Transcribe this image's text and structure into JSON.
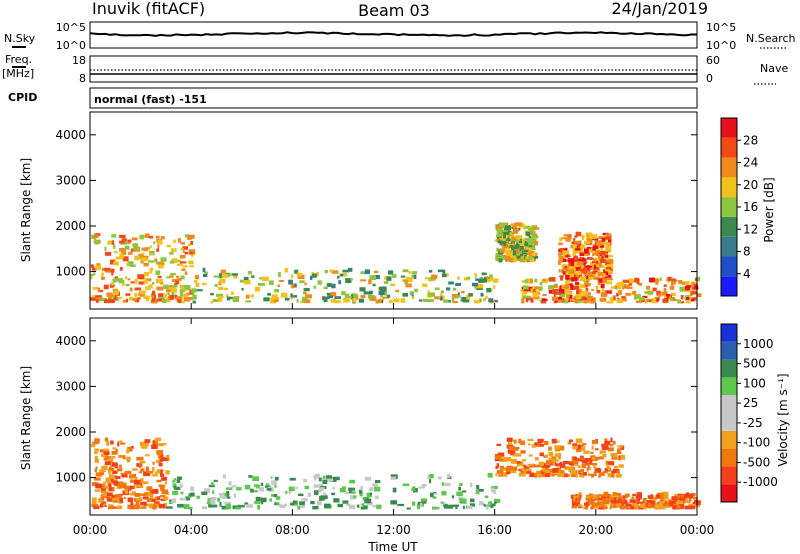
{
  "header": {
    "station": "Inuvik (fitACF)",
    "beam": "Beam 03",
    "date": "24/Jan/2019"
  },
  "small_panels": {
    "nsky_label": "N.Sky",
    "nsky_ticks": [
      "10^5",
      "10^0"
    ],
    "nsearch_label": "N.Search",
    "nsearch_ticks": [
      "10^5",
      "10^0"
    ],
    "freq_label_1": "Freq.",
    "freq_label_2": "[MHz]",
    "freq_ticks": [
      "18",
      "8"
    ],
    "nave_label": "Nave",
    "nave_ticks": [
      "60",
      "0"
    ],
    "cpid_label": "CPID",
    "cpid_value": "normal (fast) -151"
  },
  "colors": {
    "power_scale": [
      "#1a1aff",
      "#2050c8",
      "#3a7a8a",
      "#3a8a50",
      "#8cc63e",
      "#f2c21b",
      "#f08a1e",
      "#f24a16",
      "#e8101a"
    ],
    "velocity_scale": [
      "#e8101a",
      "#f4401a",
      "#f2780e",
      "#f2a21c",
      "#c8c8c8",
      "#c8c8c8",
      "#5ec84e",
      "#3a8a50",
      "#2a5fb0",
      "#1a30d8"
    ]
  },
  "chart_data": [
    {
      "type": "heatmap",
      "title": "",
      "ylabel": "Slant Range [km]",
      "xlabel": "",
      "ylim": [
        180,
        4500
      ],
      "xlim": [
        0,
        24
      ],
      "y_ticks": [
        "4000",
        "3000",
        "2000",
        "1000"
      ],
      "x_ticks": [],
      "colorbar": {
        "label": "Power [dB]",
        "ticks": [
          "28",
          "24",
          "20",
          "16",
          "12",
          "8",
          "4"
        ],
        "range": [
          0,
          32
        ]
      },
      "scatter_regions": [
        {
          "t": [
            0,
            4
          ],
          "r": [
            300,
            1800
          ],
          "value_db": 22
        },
        {
          "t": [
            4,
            16
          ],
          "r": [
            300,
            1000
          ],
          "value_db": 16
        },
        {
          "t": [
            16,
            17.5
          ],
          "r": [
            1200,
            2000
          ],
          "value_db": 18
        },
        {
          "t": [
            18.5,
            20.5
          ],
          "r": [
            800,
            1800
          ],
          "value_db": 26
        },
        {
          "t": [
            17,
            24
          ],
          "r": [
            300,
            800
          ],
          "value_db": 24
        }
      ]
    },
    {
      "type": "heatmap",
      "title": "",
      "ylabel": "Slant Range [km]",
      "xlabel": "Time UT",
      "ylim": [
        180,
        4500
      ],
      "xlim": [
        0,
        24
      ],
      "y_ticks": [
        "4000",
        "3000",
        "2000",
        "1000"
      ],
      "x_ticks": [
        "00:00",
        "04:00",
        "08:00",
        "12:00",
        "16:00",
        "20:00",
        "00:00"
      ],
      "colorbar": {
        "label": "Velocity [m s⁻¹]",
        "ticks": [
          "1000",
          "500",
          "100",
          "25",
          "-25",
          "-100",
          "-500",
          "-1000"
        ],
        "range": [
          -1000,
          1000
        ]
      },
      "scatter_regions": [
        {
          "t": [
            0,
            3
          ],
          "r": [
            300,
            1800
          ],
          "value_ms": -150
        },
        {
          "t": [
            3,
            16
          ],
          "r": [
            300,
            1000
          ],
          "value_ms": 80
        },
        {
          "t": [
            16,
            21
          ],
          "r": [
            1000,
            1800
          ],
          "value_ms": -200
        },
        {
          "t": [
            19,
            24
          ],
          "r": [
            300,
            600
          ],
          "value_ms": -120
        }
      ]
    }
  ]
}
